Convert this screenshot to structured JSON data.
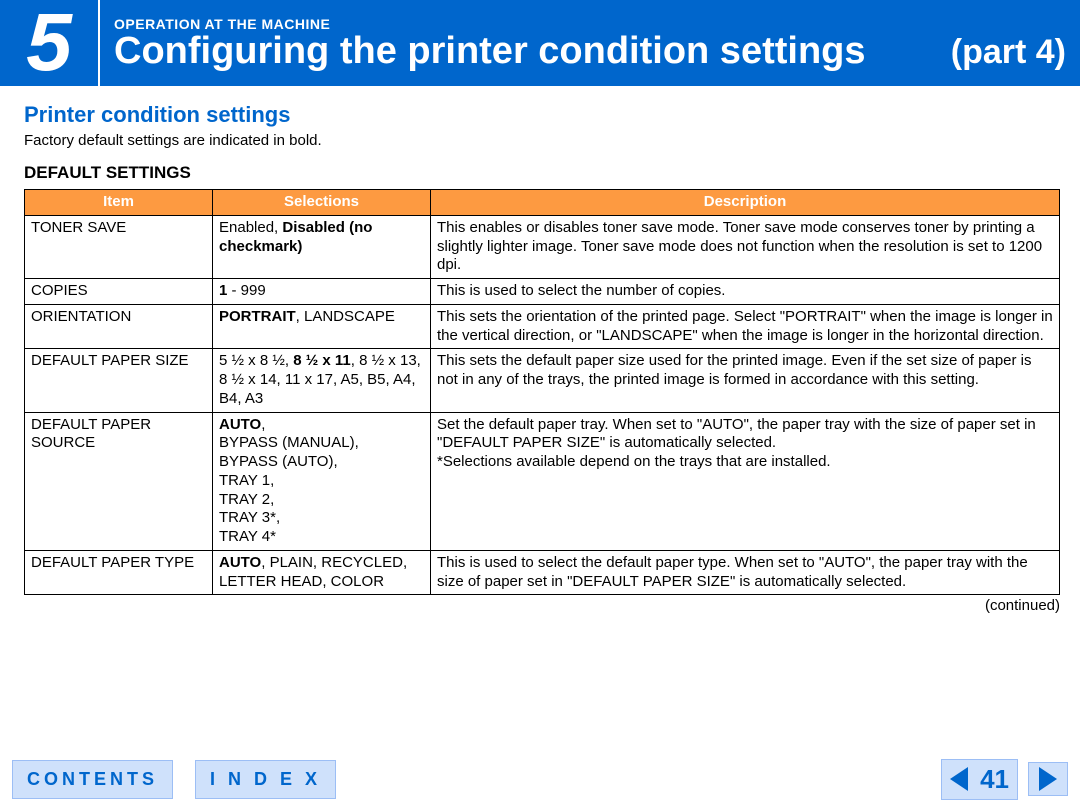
{
  "header": {
    "chapter_number": "5",
    "overline": "OPERATION AT THE MACHINE",
    "title": "Configuring the printer condition settings",
    "part": "(part 4)"
  },
  "section": {
    "heading": "Printer condition settings",
    "intro": "Factory default settings are indicated in bold.",
    "subheading": "DEFAULT SETTINGS"
  },
  "table": {
    "header_bg": "#fd9a41",
    "header_fg": "#ffffff",
    "columns": [
      "Item",
      "Selections",
      "Description"
    ],
    "rows": [
      {
        "item": "TONER SAVE",
        "selections_html": "Enabled, <b>Disabled (no checkmark)</b>",
        "description": "This enables or disables toner save mode. Toner save mode conserves toner by printing a slightly lighter image. Toner save mode does not function when the resolution is set to 1200 dpi."
      },
      {
        "item": "COPIES",
        "selections_html": "<b>1</b> - 999",
        "description": "This is used to select the number of copies."
      },
      {
        "item": "ORIENTATION",
        "selections_html": "<b>PORTRAIT</b>, LANDSCAPE",
        "description": "This sets the orientation of the printed page. Select \"PORTRAIT\" when the image is longer in the vertical direction, or \"LANDSCAPE\" when the image is longer in the horizontal direction."
      },
      {
        "item": "DEFAULT PAPER SIZE",
        "selections_html": "5 ½ x 8 ½, <b>8 ½ x 11</b>, 8 ½ x 13, 8 ½ x 14, 11 x 17, A5, B5, A4, B4, A3",
        "description": "This sets the default paper size used for the printed image. Even if the set size of paper is not in any of the trays, the printed image is formed in accordance with this setting."
      },
      {
        "item": "DEFAULT PAPER SOURCE",
        "selections_html": "<b>AUTO</b>,<br>BYPASS (MANUAL),<br>BYPASS (AUTO),<br>TRAY 1,<br>TRAY 2,<br>TRAY 3*,<br>TRAY 4*",
        "description": "Set the default paper tray. When set to \"AUTO\", the paper tray with the size of paper set in \"DEFAULT PAPER SIZE\" is automatically selected.<br>*Selections available depend on the trays that are installed."
      },
      {
        "item": "DEFAULT PAPER TYPE",
        "selections_html": "<b>AUTO</b>, PLAIN, RECYCLED, LETTER HEAD, COLOR",
        "description": "This is used to select the default paper type. When set to \"AUTO\", the paper tray with the size of paper set in \"DEFAULT PAPER SIZE\" is automatically selected."
      }
    ]
  },
  "continued_label": "(continued)",
  "footer": {
    "contents_label": "CONTENTS",
    "index_label": "I N D E X",
    "page_number": "41"
  },
  "colors": {
    "brand_blue": "#0066cc",
    "light_blue": "#cfe1fb",
    "orange": "#fd9a41"
  }
}
